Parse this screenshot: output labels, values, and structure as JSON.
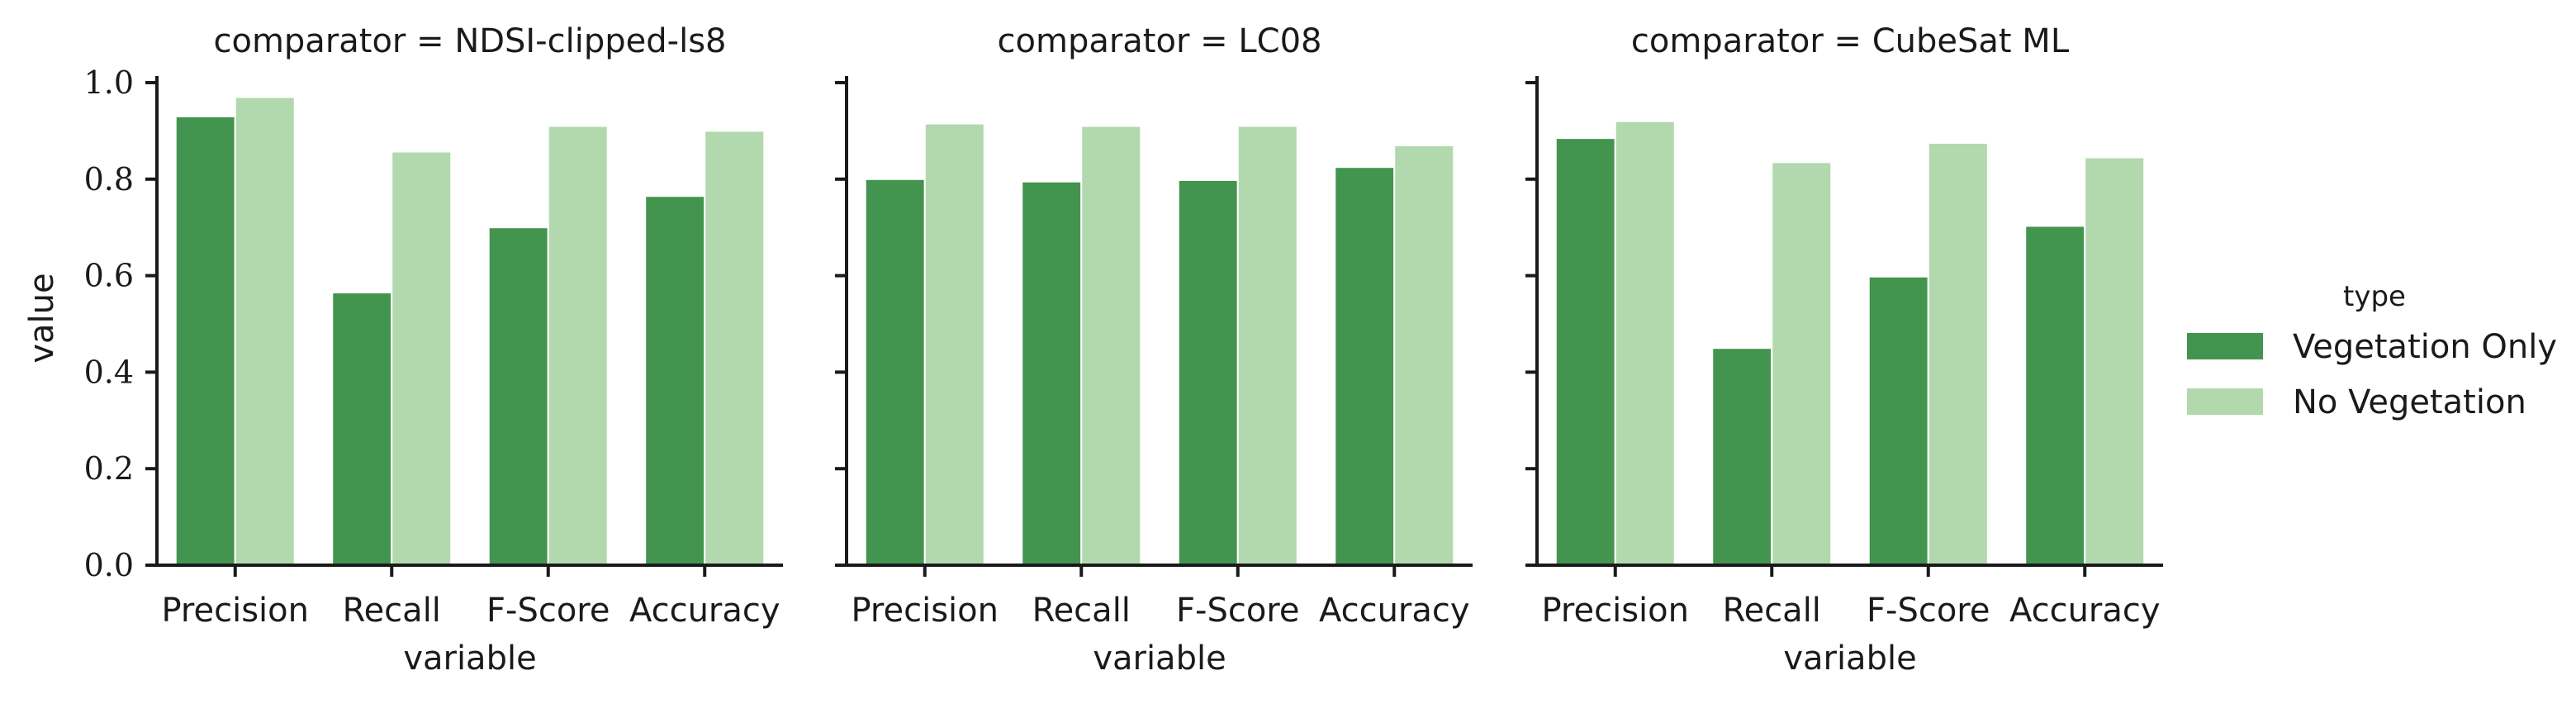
{
  "chart_data": {
    "type": "bar",
    "facet_label": "comparator",
    "xlabel": "variable",
    "ylabel": "value",
    "ylim": [
      0,
      1.0
    ],
    "yticks": [
      "0.0",
      "0.2",
      "0.4",
      "0.6",
      "0.8",
      "1.0"
    ],
    "categories": [
      "Precision",
      "Recall",
      "F-Score",
      "Accuracy"
    ],
    "legend": {
      "title": "type",
      "placement": "right",
      "entries": [
        {
          "name": "Vegetation Only",
          "color": "#43944f"
        },
        {
          "name": "No Vegetation",
          "color": "#b1d9ad"
        }
      ]
    },
    "panels": [
      {
        "title": "comparator = NDSI-clipped-ls8",
        "series": [
          {
            "name": "Vegetation Only",
            "values": [
              0.93,
              0.565,
              0.7,
              0.765
            ]
          },
          {
            "name": "No Vegetation",
            "values": [
              0.97,
              0.857,
              0.91,
              0.9
            ]
          }
        ]
      },
      {
        "title": "comparator = LC08",
        "series": [
          {
            "name": "Vegetation Only",
            "values": [
              0.8,
              0.795,
              0.798,
              0.825
            ]
          },
          {
            "name": "No Vegetation",
            "values": [
              0.915,
              0.91,
              0.91,
              0.87
            ]
          }
        ]
      },
      {
        "title": "comparator = CubeSat ML",
        "series": [
          {
            "name": "Vegetation Only",
            "values": [
              0.885,
              0.45,
              0.598,
              0.703
            ]
          },
          {
            "name": "No Vegetation",
            "values": [
              0.92,
              0.835,
              0.875,
              0.845
            ]
          }
        ]
      }
    ]
  }
}
